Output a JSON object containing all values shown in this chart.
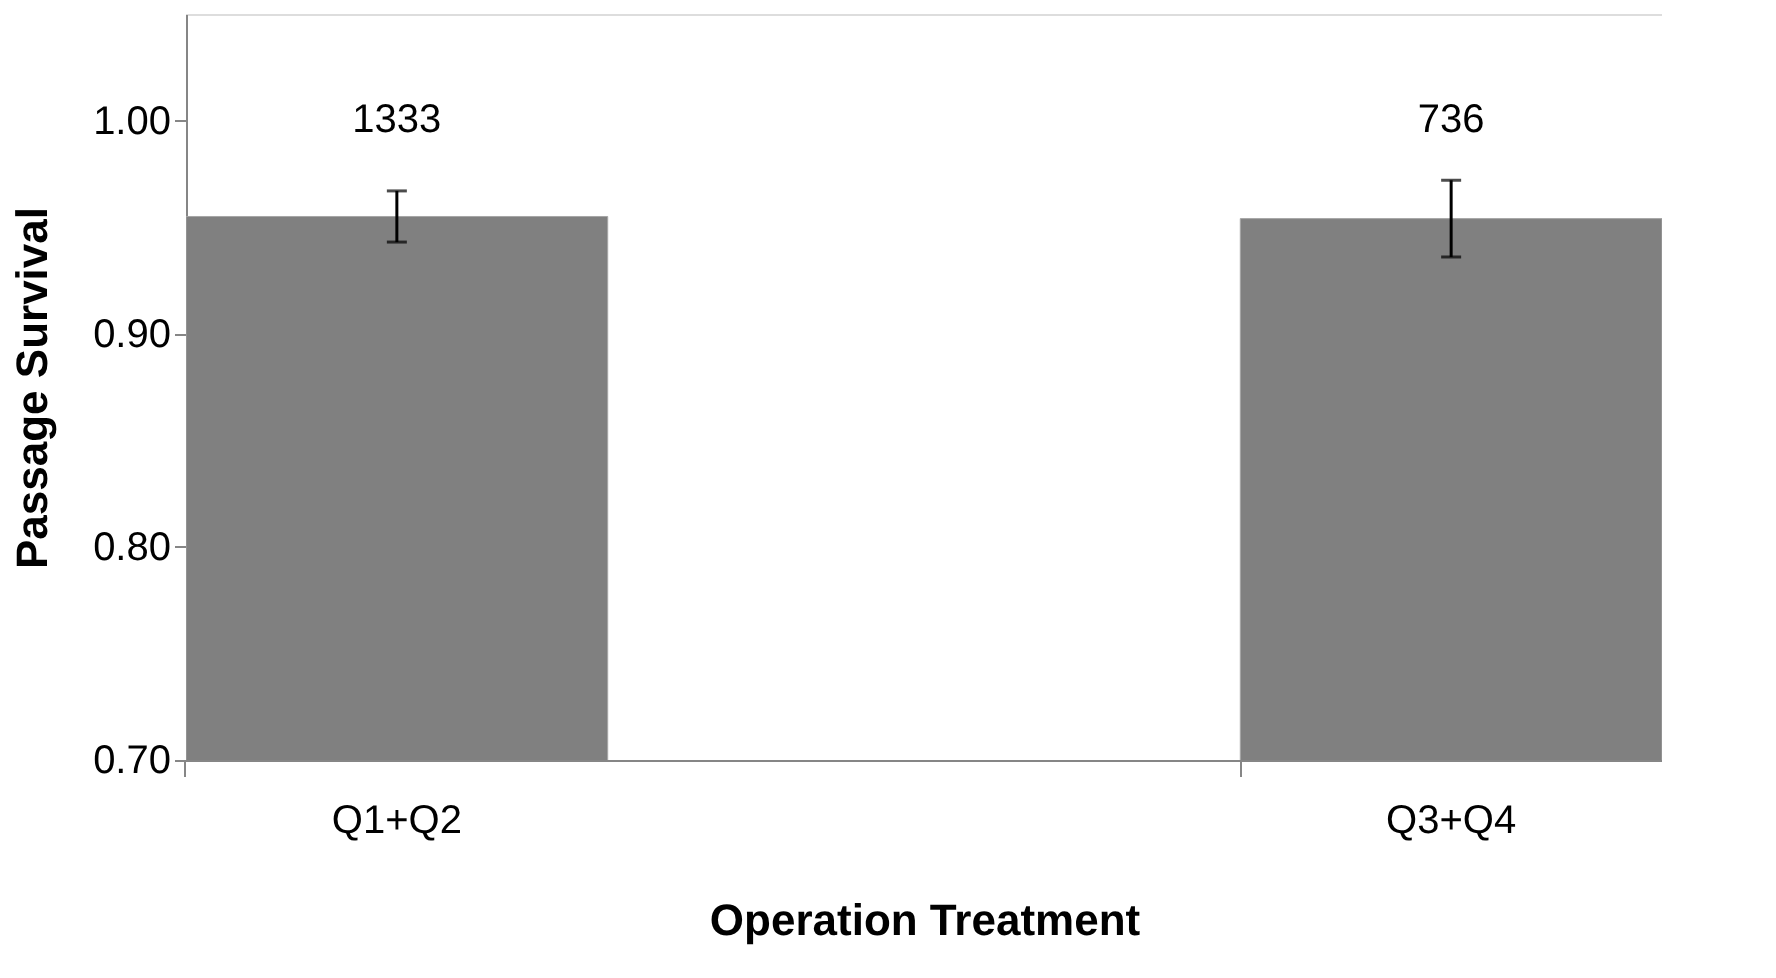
{
  "chart_data": {
    "type": "bar",
    "xlabel": "Operation Treatment",
    "ylabel": "Passage Survival",
    "categories": [
      "Q1+Q2",
      "Q3+Q4"
    ],
    "values": [
      0.955,
      0.954
    ],
    "color": "#808080",
    "errors": [
      0.012,
      0.018
    ],
    "ylim": [
      0.7,
      1.05
    ],
    "yticks": [
      {
        "value": 0.7,
        "label": "0.70"
      },
      {
        "value": 0.8,
        "label": "0.80"
      },
      {
        "value": 0.9,
        "label": "0.90"
      },
      {
        "value": 1.0,
        "label": "1.00"
      }
    ],
    "grid": false,
    "annotations": [
      "1333",
      "736"
    ]
  }
}
